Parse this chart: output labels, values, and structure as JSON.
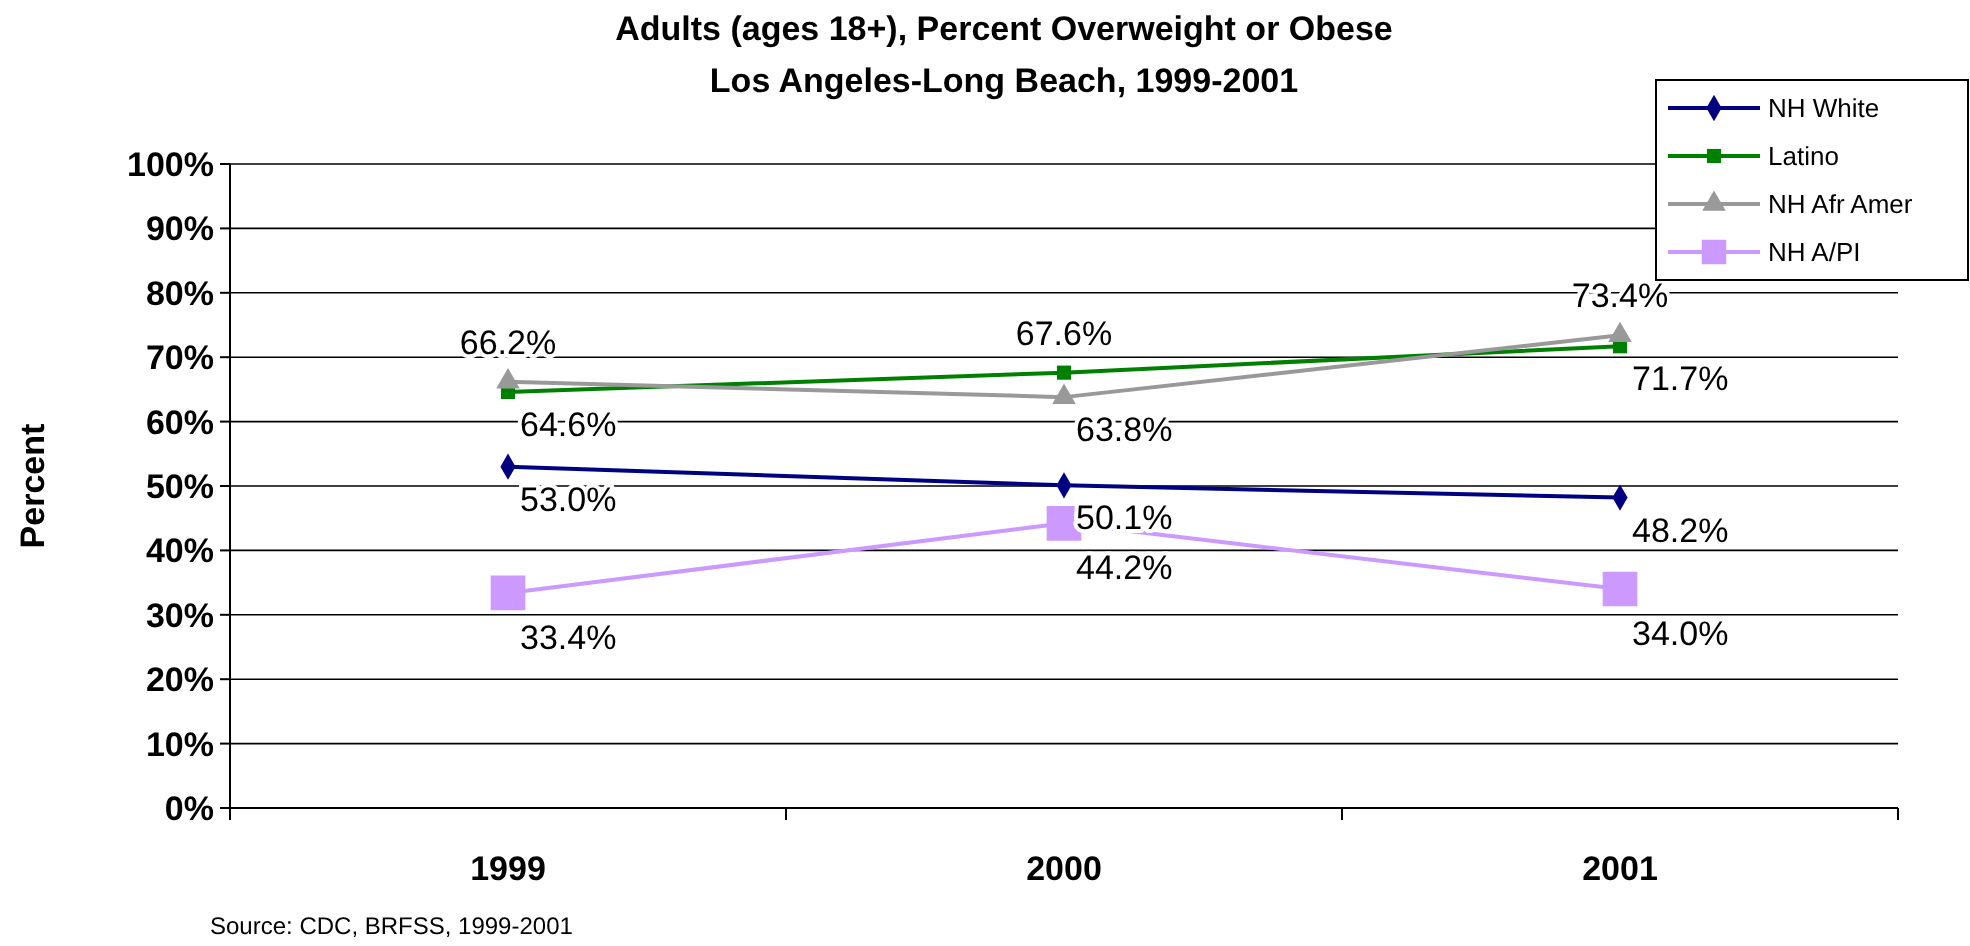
{
  "chart_data": {
    "type": "line",
    "title": "Adults (ages 18+), Percent Overweight or Obese\nLos Angeles-Long Beach, 1999-2001",
    "ylabel": "Percent",
    "categories": [
      "1999",
      "2000",
      "2001"
    ],
    "series": [
      {
        "name": "NH White",
        "color": "#000080",
        "marker": "diamond",
        "values": [
          53.0,
          50.1,
          48.2
        ],
        "value_labels": [
          "53.0%",
          "50.1%",
          "48.2%"
        ]
      },
      {
        "name": "Latino",
        "color": "#008000",
        "marker": "square",
        "values": [
          64.6,
          67.6,
          71.7
        ],
        "value_labels": [
          "64.6%",
          "67.6%",
          "71.7%"
        ]
      },
      {
        "name": "NH Afr Amer",
        "color": "#999999",
        "marker": "triangle",
        "values": [
          66.2,
          63.8,
          73.4
        ],
        "value_labels": [
          "66.2%",
          "63.8%",
          "73.4%"
        ]
      },
      {
        "name": "NH A/PI",
        "color": "#cc99ff",
        "marker": "square",
        "values": [
          33.4,
          44.2,
          34.0
        ],
        "value_labels": [
          "33.4%",
          "44.2%",
          "34.0%"
        ]
      }
    ],
    "ylim": [
      0,
      100
    ],
    "yticks": [
      {
        "value": 0,
        "label": "0%"
      },
      {
        "value": 10,
        "label": "10%"
      },
      {
        "value": 20,
        "label": "20%"
      },
      {
        "value": 30,
        "label": "30%"
      },
      {
        "value": 40,
        "label": "40%"
      },
      {
        "value": 50,
        "label": "50%"
      },
      {
        "value": 60,
        "label": "60%"
      },
      {
        "value": 70,
        "label": "70%"
      },
      {
        "value": 80,
        "label": "80%"
      },
      {
        "value": 90,
        "label": "90%"
      },
      {
        "value": 100,
        "label": "100%"
      }
    ],
    "grid": "y",
    "legend": "top right",
    "line_style": "solid",
    "annotations": [
      "Source: CDC, BRFSS, 1999-2001"
    ]
  }
}
